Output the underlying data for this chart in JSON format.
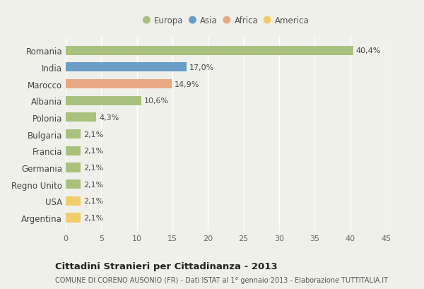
{
  "countries": [
    "Romania",
    "India",
    "Marocco",
    "Albania",
    "Polonia",
    "Bulgaria",
    "Francia",
    "Germania",
    "Regno Unito",
    "USA",
    "Argentina"
  ],
  "values": [
    40.4,
    17.0,
    14.9,
    10.6,
    4.3,
    2.1,
    2.1,
    2.1,
    2.1,
    2.1,
    2.1
  ],
  "labels": [
    "40,4%",
    "17,0%",
    "14,9%",
    "10,6%",
    "4,3%",
    "2,1%",
    "2,1%",
    "2,1%",
    "2,1%",
    "2,1%",
    "2,1%"
  ],
  "continents": [
    "Europa",
    "Asia",
    "Africa",
    "Europa",
    "Europa",
    "Europa",
    "Europa",
    "Europa",
    "Europa",
    "America",
    "America"
  ],
  "colors": {
    "Europa": "#a8c17c",
    "Asia": "#6a9ec7",
    "Africa": "#e8a882",
    "America": "#f0cc6a"
  },
  "legend_labels": [
    "Europa",
    "Asia",
    "Africa",
    "America"
  ],
  "legend_colors": [
    "#a8c17c",
    "#6a9ec7",
    "#e8a882",
    "#f0cc6a"
  ],
  "xlim": [
    0,
    45
  ],
  "xticks": [
    0,
    5,
    10,
    15,
    20,
    25,
    30,
    35,
    40,
    45
  ],
  "title": "Cittadini Stranieri per Cittadinanza - 2013",
  "subtitle": "COMUNE DI CORENO AUSONIO (FR) - Dati ISTAT al 1° gennaio 2013 - Elaborazione TUTTITALIA.IT",
  "background_color": "#f0f0eb",
  "grid_color": "#ffffff",
  "bar_height": 0.55
}
